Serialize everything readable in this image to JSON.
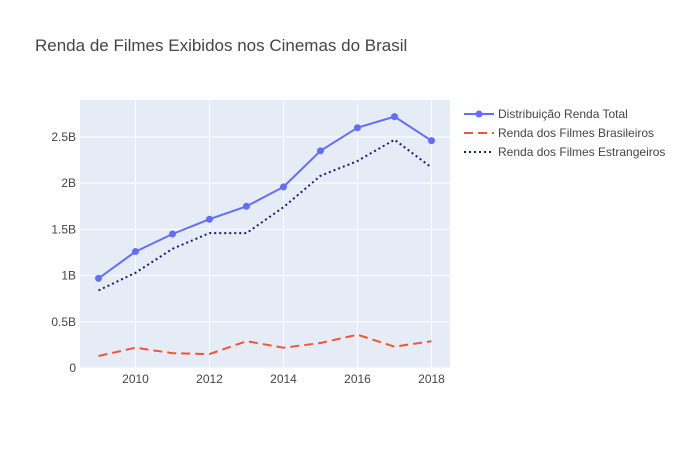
{
  "chart_data": {
    "type": "line",
    "title": "Renda de Filmes Exibidos nos Cinemas do Brasil",
    "xlabel": "",
    "ylabel": "",
    "x": [
      2009,
      2010,
      2011,
      2012,
      2013,
      2014,
      2015,
      2016,
      2017,
      2018
    ],
    "xlim": [
      2008.5,
      2018.5
    ],
    "ylim": [
      0,
      2.9
    ],
    "xticks": [
      2010,
      2012,
      2014,
      2016,
      2018
    ],
    "yticks": [
      0,
      0.5,
      1,
      1.5,
      2,
      2.5
    ],
    "ytick_labels": [
      "0",
      "0.5B",
      "1B",
      "1.5B",
      "2B",
      "2.5B"
    ],
    "grid": true,
    "legend_position": "top-right",
    "series": [
      {
        "name": "Distribuição Renda Total",
        "color": "#636efa",
        "style": "solid",
        "markers": true,
        "values": [
          0.97,
          1.26,
          1.45,
          1.61,
          1.75,
          1.96,
          2.35,
          2.6,
          2.72,
          2.46
        ]
      },
      {
        "name": "Renda dos Filmes Brasileiros",
        "color": "#ef553b",
        "style": "dash",
        "markers": false,
        "values": [
          0.13,
          0.22,
          0.16,
          0.15,
          0.29,
          0.22,
          0.27,
          0.36,
          0.23,
          0.29
        ]
      },
      {
        "name": "Renda dos Filmes Estrangeiros",
        "color": "#1a1a6e",
        "style": "dot",
        "markers": false,
        "values": [
          0.84,
          1.03,
          1.29,
          1.46,
          1.46,
          1.74,
          2.08,
          2.24,
          2.47,
          2.17
        ]
      }
    ]
  }
}
